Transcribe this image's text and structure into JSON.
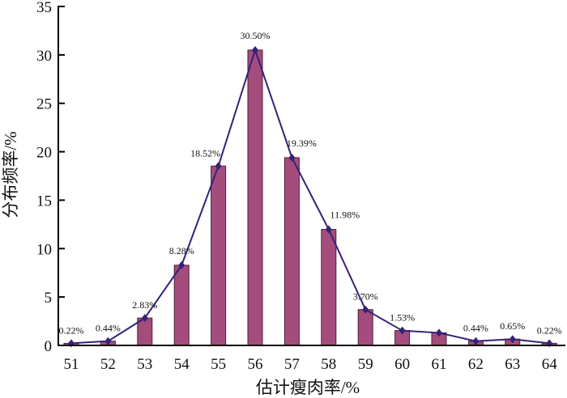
{
  "chart_data": {
    "type": "bar",
    "title": "",
    "xlabel": "估计瘦肉率/%",
    "ylabel": "分布频率/%",
    "ylim": [
      0,
      35
    ],
    "yticks": [
      "0",
      "5",
      "10",
      "15",
      "20",
      "25",
      "30",
      "35"
    ],
    "categories": [
      "51",
      "52",
      "53",
      "54",
      "55",
      "56",
      "57",
      "58",
      "59",
      "60",
      "61",
      "62",
      "63",
      "64"
    ],
    "values": [
      0.22,
      0.44,
      2.83,
      8.28,
      18.52,
      30.5,
      19.39,
      11.98,
      3.7,
      1.53,
      1.3,
      0.44,
      0.65,
      0.22
    ],
    "data_labels": [
      "0.22%",
      "0.44%",
      "2.83%",
      "8.28%",
      "18.52%",
      "30.50%",
      "19.39%",
      "11.98%",
      "3.70%",
      "1.53%",
      "",
      "0.44%",
      "0.65%",
      "0.22%"
    ],
    "overlay": "line-with-diamond-markers",
    "grid": false,
    "colors": {
      "bar": "#a44d7c",
      "bar_edge": "#4a1f3a",
      "line": "#35217a"
    }
  }
}
